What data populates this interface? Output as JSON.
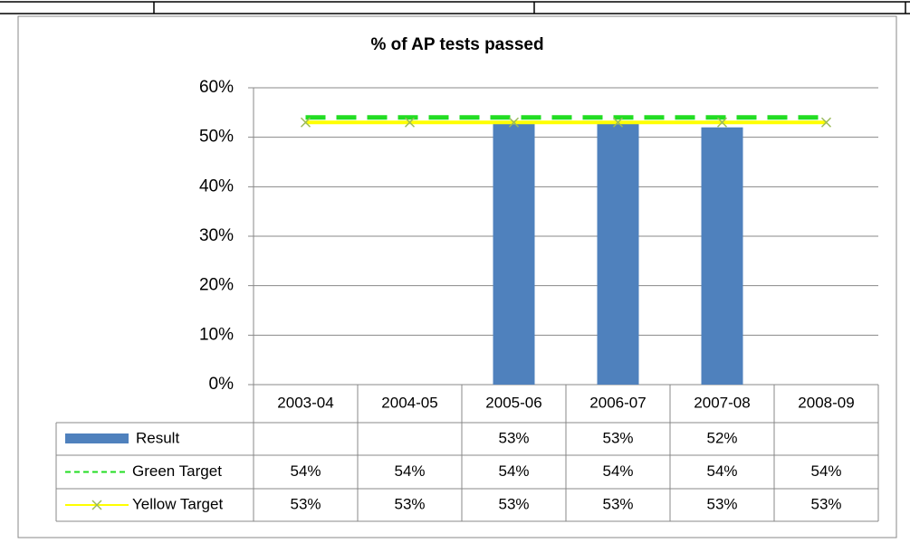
{
  "chart_data": {
    "type": "bar",
    "title": "% of  AP tests passed",
    "categories": [
      "2003-04",
      "2004-05",
      "2005-06",
      "2006-07",
      "2007-08",
      "2008-09"
    ],
    "series": [
      {
        "name": "Result",
        "type": "bar",
        "color": "#4f81bd",
        "values": [
          null,
          null,
          53,
          53,
          52,
          null
        ],
        "value_labels": [
          null,
          null,
          "53%",
          "53%",
          "52%",
          null
        ]
      },
      {
        "name": "Green Target",
        "type": "line",
        "color": "#22dd22",
        "dash": true,
        "values": [
          54,
          54,
          54,
          54,
          54,
          54
        ],
        "value_labels": [
          "54%",
          "54%",
          "54%",
          "54%",
          "54%",
          "54%"
        ]
      },
      {
        "name": "Yellow Target",
        "type": "line",
        "color": "#ffff00",
        "marker": "x",
        "marker_color": "#9bbb59",
        "values": [
          53,
          53,
          53,
          53,
          53,
          53
        ],
        "value_labels": [
          "53%",
          "53%",
          "53%",
          "53%",
          "53%",
          "53%"
        ]
      }
    ],
    "ylim": [
      0,
      60
    ],
    "yticks": [
      {
        "value": 0,
        "label": "0%"
      },
      {
        "value": 10,
        "label": "10%"
      },
      {
        "value": 20,
        "label": "20%"
      },
      {
        "value": 30,
        "label": "30%"
      },
      {
        "value": 40,
        "label": "40%"
      },
      {
        "value": 50,
        "label": "50%"
      },
      {
        "value": 60,
        "label": "60%"
      }
    ],
    "grid": true
  }
}
